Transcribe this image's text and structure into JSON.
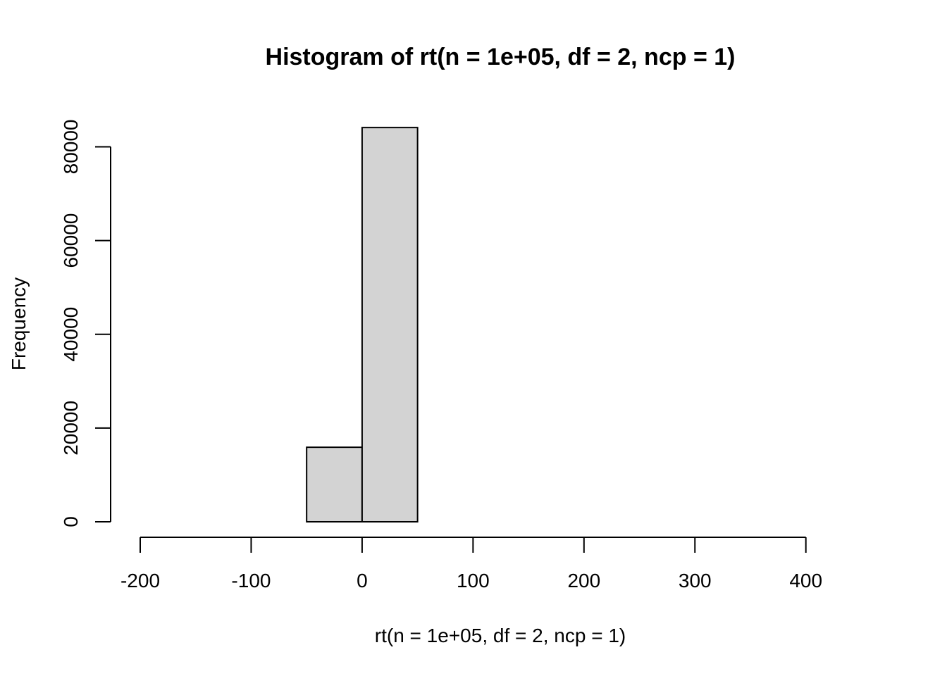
{
  "chart_data": {
    "type": "bar",
    "title": "Histogram of rt(n = 1e+05, df = 2, ncp = 1)",
    "xlabel": "rt(n = 1e+05, df = 2, ncp = 1)",
    "ylabel": "Frequency",
    "xlim": [
      -200,
      450
    ],
    "ylim": [
      0,
      84000
    ],
    "x_ticks": [
      -200,
      -100,
      0,
      100,
      200,
      300,
      400
    ],
    "y_ticks": [
      0,
      20000,
      40000,
      60000,
      80000
    ],
    "bins": [
      {
        "start": -200,
        "end": -150,
        "count": 0
      },
      {
        "start": -150,
        "end": -100,
        "count": 0
      },
      {
        "start": -100,
        "end": -50,
        "count": 0
      },
      {
        "start": -50,
        "end": 0,
        "count": 15900
      },
      {
        "start": 0,
        "end": 50,
        "count": 84100
      },
      {
        "start": 50,
        "end": 100,
        "count": 0
      },
      {
        "start": 100,
        "end": 150,
        "count": 0
      },
      {
        "start": 150,
        "end": 200,
        "count": 0
      },
      {
        "start": 200,
        "end": 250,
        "count": 0
      },
      {
        "start": 250,
        "end": 300,
        "count": 0
      },
      {
        "start": 300,
        "end": 350,
        "count": 0
      },
      {
        "start": 350,
        "end": 400,
        "count": 0
      },
      {
        "start": 400,
        "end": 450,
        "count": 0
      }
    ],
    "grid": false,
    "bar_color": "#d3d3d3",
    "outline_color": "#000000"
  }
}
